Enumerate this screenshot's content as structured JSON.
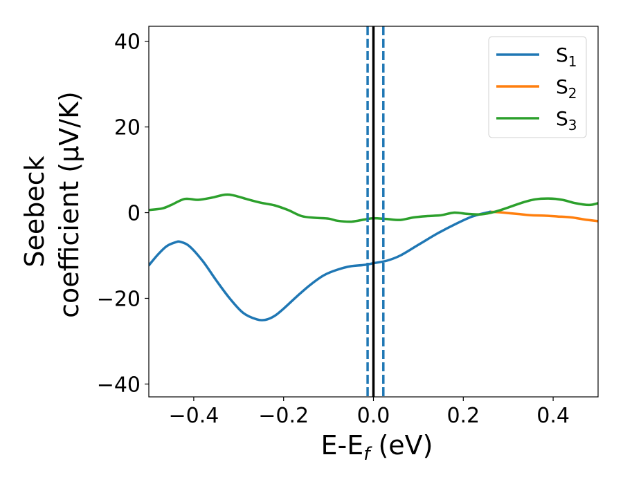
{
  "chart_data": {
    "type": "line",
    "xlabel": {
      "main": "E-E",
      "sub": "f",
      "unit": " (eV)"
    },
    "ylabel": {
      "line1": "Seebeck",
      "line2": "coefficient  (μV/K)"
    },
    "xlim": [
      -0.5,
      0.5
    ],
    "ylim": [
      -43,
      43.5
    ],
    "xticks": [
      {
        "value": -0.4,
        "label": "−0.4"
      },
      {
        "value": -0.2,
        "label": "−0.2"
      },
      {
        "value": 0.0,
        "label": "0.0"
      },
      {
        "value": 0.2,
        "label": "0.2"
      },
      {
        "value": 0.4,
        "label": "0.4"
      }
    ],
    "yticks": [
      {
        "value": -40,
        "label": "−40"
      },
      {
        "value": -20,
        "label": "−20"
      },
      {
        "value": 0,
        "label": "0"
      },
      {
        "value": 20,
        "label": "20"
      },
      {
        "value": 40,
        "label": "40"
      }
    ],
    "grid": false,
    "legend_position": "top-right",
    "vlines": [
      {
        "x": 0.0,
        "color": "#000000",
        "style": "solid"
      },
      {
        "x": -0.013,
        "color": "#1f77b4",
        "style": "dashed"
      },
      {
        "x": 0.022,
        "color": "#1f77b4",
        "style": "dashed"
      }
    ],
    "series": [
      {
        "name": "S",
        "sub": "1",
        "color": "#1f77b4",
        "x": [
          -0.5,
          -0.48,
          -0.46,
          -0.44,
          -0.43,
          -0.41,
          -0.38,
          -0.35,
          -0.32,
          -0.29,
          -0.26,
          -0.24,
          -0.22,
          -0.2,
          -0.17,
          -0.14,
          -0.11,
          -0.08,
          -0.05,
          -0.02,
          0.0,
          0.03,
          0.06,
          0.1,
          0.14,
          0.18,
          0.22,
          0.26
        ],
        "y": [
          -12.3,
          -9.8,
          -7.8,
          -6.9,
          -6.8,
          -7.8,
          -11.3,
          -15.8,
          -20.0,
          -23.4,
          -24.9,
          -25.0,
          -24.1,
          -22.4,
          -19.5,
          -16.8,
          -14.6,
          -13.3,
          -12.5,
          -12.2,
          -11.8,
          -11.2,
          -10.0,
          -7.5,
          -5.0,
          -2.8,
          -0.9,
          0.2
        ]
      },
      {
        "name": "S",
        "sub": "2",
        "color": "#ff7f0e",
        "x": [
          0.26,
          0.29,
          0.32,
          0.35,
          0.38,
          0.41,
          0.44,
          0.47,
          0.5
        ],
        "y": [
          0.2,
          0.0,
          -0.3,
          -0.6,
          -0.7,
          -0.9,
          -1.1,
          -1.6,
          -2.0
        ]
      },
      {
        "name": "S",
        "sub": "3",
        "color": "#2ca02c",
        "x": [
          -0.5,
          -0.47,
          -0.45,
          -0.42,
          -0.39,
          -0.36,
          -0.33,
          -0.31,
          -0.28,
          -0.25,
          -0.22,
          -0.19,
          -0.16,
          -0.13,
          -0.1,
          -0.08,
          -0.05,
          -0.02,
          0.0,
          0.03,
          0.06,
          0.09,
          0.12,
          0.15,
          0.18,
          0.21,
          0.24,
          0.27,
          0.3,
          0.33,
          0.36,
          0.39,
          0.42,
          0.45,
          0.48,
          0.5
        ],
        "y": [
          0.6,
          1.0,
          1.8,
          3.2,
          3.0,
          3.5,
          4.2,
          4.0,
          3.1,
          2.3,
          1.7,
          0.6,
          -0.8,
          -1.2,
          -1.4,
          -1.9,
          -2.1,
          -1.6,
          -1.3,
          -1.5,
          -1.7,
          -1.1,
          -0.8,
          -0.6,
          0.0,
          -0.3,
          -0.4,
          0.2,
          1.2,
          2.3,
          3.1,
          3.3,
          3.0,
          2.2,
          1.8,
          2.2
        ]
      }
    ]
  }
}
